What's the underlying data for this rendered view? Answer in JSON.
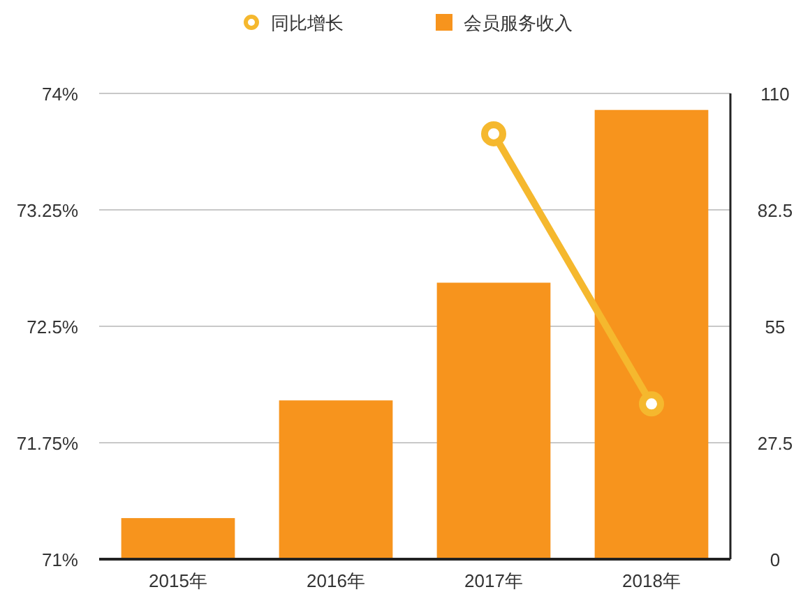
{
  "chart_data": {
    "type": "bar",
    "categories": [
      "2015年",
      "2016年",
      "2017年",
      "2018年"
    ],
    "series": [
      {
        "name": "同比增长",
        "type": "line",
        "color": "#f5b82e",
        "marker": "circle",
        "values": [
          null,
          null,
          73.74,
          72.0
        ]
      },
      {
        "name": "会员服务收入",
        "axis": "y2",
        "color": "#f7941d",
        "values": [
          9.7,
          37.5,
          65.3,
          106.1
        ]
      }
    ],
    "ylim": [
      71,
      74
    ],
    "yticks": [
      {
        "value": 71,
        "label": "71%"
      },
      {
        "value": 71.75,
        "label": "71.75%"
      },
      {
        "value": 72.5,
        "label": "72.5%"
      },
      {
        "value": 73.25,
        "label": "73.25%"
      },
      {
        "value": 74,
        "label": "74%"
      }
    ],
    "y2lim": [
      0,
      110
    ],
    "y2ticks": [
      0,
      27.5,
      55,
      82.5,
      110
    ],
    "grid": "y",
    "legend": "top"
  }
}
